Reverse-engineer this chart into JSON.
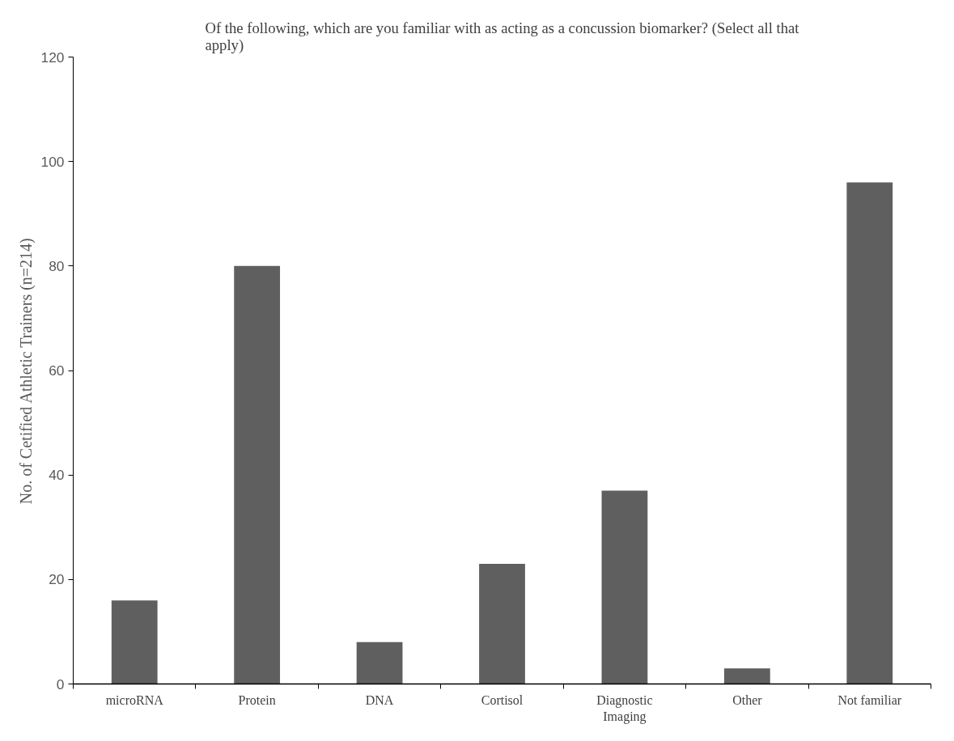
{
  "chart_data": {
    "type": "bar",
    "title": "Of the following, which are you familiar with as acting as a concussion biomarker? (Select all that apply)",
    "ylabel": "No. of Cetified Athletic Trainers (n=214)",
    "categories": [
      "microRNA",
      "Protein",
      "DNA",
      "Cortisol",
      "Diagnostic Imaging",
      "Other",
      "Not familiar"
    ],
    "values": [
      16,
      80,
      8,
      23,
      37,
      3,
      96
    ],
    "color": "#5f5f5f",
    "ylim": [
      0,
      120
    ],
    "yticks": [
      0,
      20,
      40,
      60,
      80,
      100,
      120
    ],
    "grid": false
  }
}
